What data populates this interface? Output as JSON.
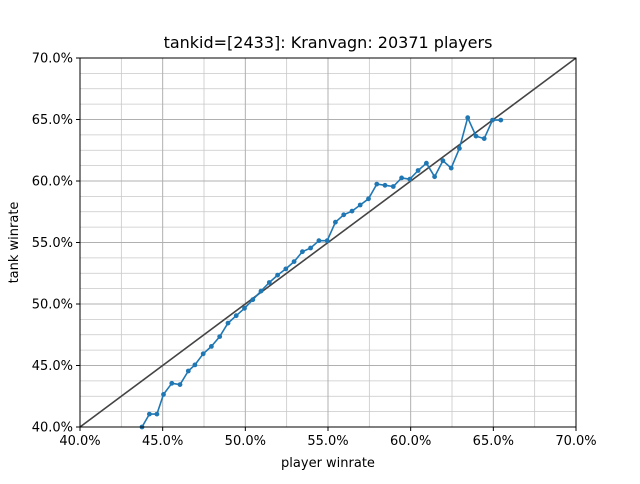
{
  "chart_data": {
    "type": "line",
    "title": "tankid=[2433]: Kranvagn: 20371 players",
    "xlabel": "player winrate",
    "ylabel": "tank winrate",
    "xlim": [
      0.4,
      0.7
    ],
    "ylim": [
      0.4,
      0.7
    ],
    "x_ticks": [
      {
        "value": 0.4,
        "label": "40.0%"
      },
      {
        "value": 0.45,
        "label": "45.0%"
      },
      {
        "value": 0.5,
        "label": "50.0%"
      },
      {
        "value": 0.55,
        "label": "55.0%"
      },
      {
        "value": 0.6,
        "label": "60.0%"
      },
      {
        "value": 0.65,
        "label": "65.0%"
      },
      {
        "value": 0.7,
        "label": "70.0%"
      }
    ],
    "y_ticks": [
      {
        "value": 0.4,
        "label": "40.0%"
      },
      {
        "value": 0.45,
        "label": "45.0%"
      },
      {
        "value": 0.5,
        "label": "50.0%"
      },
      {
        "value": 0.55,
        "label": "55.0%"
      },
      {
        "value": 0.6,
        "label": "60.0%"
      },
      {
        "value": 0.65,
        "label": "65.0%"
      },
      {
        "value": 0.7,
        "label": "70.0%"
      }
    ],
    "x_minor_grid": [
      0.425,
      0.475,
      0.525,
      0.575,
      0.625,
      0.675
    ],
    "y_minor_grid": [
      0.4125,
      0.425,
      0.4375,
      0.4625,
      0.475,
      0.4875,
      0.5125,
      0.525,
      0.5375,
      0.5625,
      0.575,
      0.5875,
      0.6125,
      0.625,
      0.6375,
      0.6625,
      0.675,
      0.6875
    ],
    "grid": true,
    "reference_line": {
      "x": [
        0.4,
        0.7
      ],
      "y": [
        0.4,
        0.7
      ],
      "color": "#444444"
    },
    "series": [
      {
        "color": "#1f77b4",
        "x": [
          0.4375,
          0.442,
          0.4465,
          0.4505,
          0.4555,
          0.4605,
          0.4655,
          0.4695,
          0.4745,
          0.4795,
          0.4845,
          0.4895,
          0.4945,
          0.4995,
          0.5045,
          0.5095,
          0.5145,
          0.5195,
          0.5245,
          0.5295,
          0.5345,
          0.5395,
          0.5445,
          0.5495,
          0.5545,
          0.5595,
          0.5645,
          0.5695,
          0.5745,
          0.5795,
          0.5845,
          0.5895,
          0.5945,
          0.5995,
          0.6045,
          0.6095,
          0.6145,
          0.6195,
          0.6245,
          0.6295,
          0.6345,
          0.6395,
          0.6445,
          0.6495,
          0.6545
        ],
        "y": [
          0.4,
          0.4105,
          0.4105,
          0.4265,
          0.4355,
          0.4345,
          0.4455,
          0.4505,
          0.4595,
          0.4655,
          0.4735,
          0.4845,
          0.4905,
          0.4965,
          0.5035,
          0.5105,
          0.5175,
          0.5235,
          0.5285,
          0.5345,
          0.5425,
          0.5455,
          0.5515,
          0.5515,
          0.5665,
          0.5725,
          0.5755,
          0.5805,
          0.5855,
          0.5975,
          0.5965,
          0.5955,
          0.6025,
          0.6015,
          0.6085,
          0.6145,
          0.6035,
          0.6165,
          0.6105,
          0.6265,
          0.6515,
          0.6365,
          0.6345,
          0.6495,
          0.6495
        ]
      }
    ]
  }
}
